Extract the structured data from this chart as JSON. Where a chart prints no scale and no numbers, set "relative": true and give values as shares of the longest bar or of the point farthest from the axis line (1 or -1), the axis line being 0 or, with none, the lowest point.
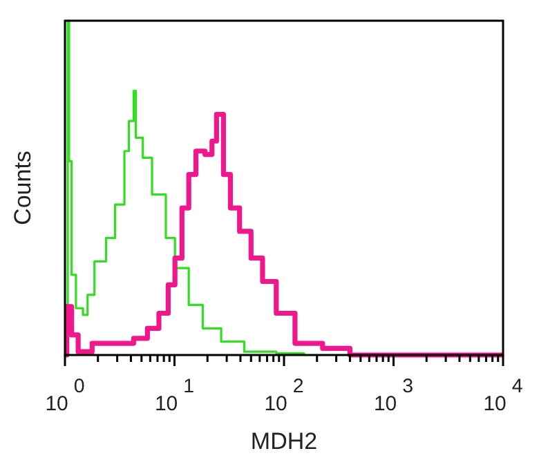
{
  "chart_data": {
    "type": "step",
    "xlabel": "MDH2",
    "ylabel": "Counts",
    "relative": true,
    "log": "x",
    "xlim": [
      1,
      10000
    ],
    "xticks": [
      {
        "value": 1,
        "label": "10$^{0}$"
      },
      {
        "value": 2,
        "label": null
      },
      {
        "value": 3,
        "label": null
      },
      {
        "value": 4,
        "label": null
      },
      {
        "value": 5,
        "label": null
      },
      {
        "value": 6,
        "label": null
      },
      {
        "value": 7,
        "label": null
      },
      {
        "value": 8,
        "label": null
      },
      {
        "value": 9,
        "label": null
      },
      {
        "value": 10,
        "label": "10$^{1}$"
      },
      {
        "value": 20,
        "label": null
      },
      {
        "value": 30,
        "label": null
      },
      {
        "value": 40,
        "label": null
      },
      {
        "value": 50,
        "label": null
      },
      {
        "value": 60,
        "label": null
      },
      {
        "value": 70,
        "label": null
      },
      {
        "value": 80,
        "label": null
      },
      {
        "value": 90,
        "label": null
      },
      {
        "value": 100,
        "label": "10$^{2}$"
      },
      {
        "value": 200,
        "label": null
      },
      {
        "value": 300,
        "label": null
      },
      {
        "value": 400,
        "label": null
      },
      {
        "value": 500,
        "label": null
      },
      {
        "value": 600,
        "label": null
      },
      {
        "value": 700,
        "label": null
      },
      {
        "value": 800,
        "label": null
      },
      {
        "value": 900,
        "label": null
      },
      {
        "value": 1000,
        "label": "10$^{3}$"
      },
      {
        "value": 2000,
        "label": null
      },
      {
        "value": 3000,
        "label": null
      },
      {
        "value": 4000,
        "label": null
      },
      {
        "value": 5000,
        "label": null
      },
      {
        "value": 6000,
        "label": null
      },
      {
        "value": 7000,
        "label": null
      },
      {
        "value": 8000,
        "label": null
      },
      {
        "value": 9000,
        "label": null
      },
      {
        "value": 10000,
        "label": "10$^{4}$"
      }
    ],
    "grid": false,
    "series": [
      {
        "color": "#33dd22",
        "x": [
          1.0,
          1.06,
          1.09,
          1.15,
          1.26,
          1.46,
          1.61,
          1.86,
          2.37,
          2.87,
          3.49,
          3.84,
          4.24,
          4.44,
          5.14,
          6.24,
          8.34,
          10.1,
          13.5,
          18.1,
          26.7,
          43.3,
          85,
          152
        ],
        "values": [
          0,
          1.0,
          0.58,
          0.24,
          0.14,
          0.12,
          0.18,
          0.28,
          0.35,
          0.45,
          0.61,
          0.7,
          0.79,
          0.65,
          0.59,
          0.48,
          0.35,
          0.26,
          0.15,
          0.08,
          0.04,
          0.01,
          0.005,
          0
        ]
      },
      {
        "color": "#f0168c",
        "x": [
          1.0,
          1.04,
          1.15,
          1.32,
          1.77,
          2.87,
          4.24,
          5.66,
          7.21,
          8.76,
          10.1,
          11.7,
          13.5,
          15.7,
          19.0,
          22,
          24.2,
          26.1,
          28,
          32.4,
          39.3,
          50,
          63.7,
          85,
          126,
          225,
          400,
          10000
        ],
        "values": [
          0,
          0.145,
          0.06,
          0.01,
          0.035,
          0.035,
          0.05,
          0.08,
          0.125,
          0.21,
          0.29,
          0.44,
          0.54,
          0.61,
          0.6,
          0.64,
          0.72,
          0.72,
          0.54,
          0.44,
          0.37,
          0.29,
          0.22,
          0.125,
          0.035,
          0.02,
          0,
          0
        ]
      }
    ]
  }
}
